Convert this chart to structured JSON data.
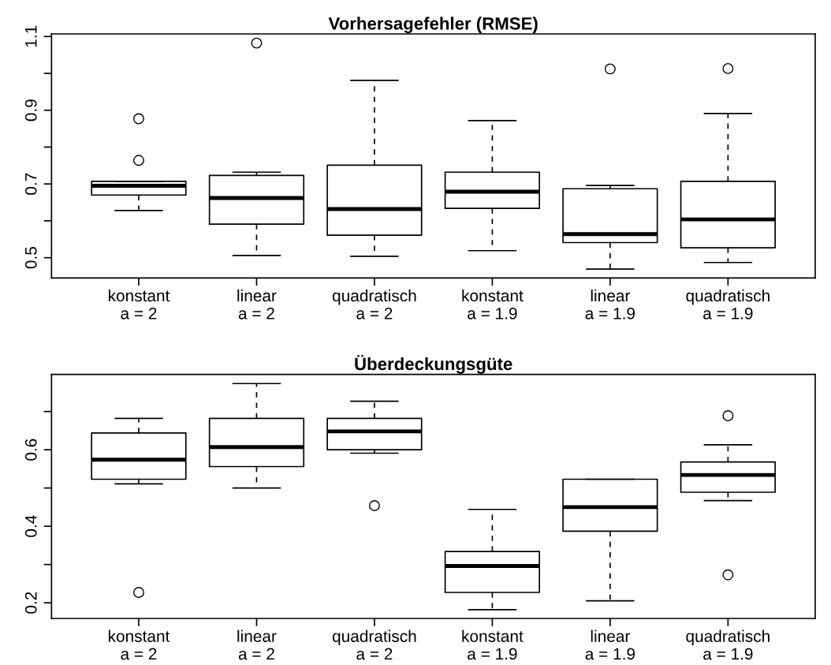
{
  "chart_data": [
    {
      "type": "box",
      "title": "Vorhersagefehler (RMSE)",
      "categories": [
        "konstant\na = 2",
        "linear\na = 2",
        "quadratisch\na = 2",
        "konstant\na = 1.9",
        "linear\na = 1.9",
        "quadratisch\na = 1.9"
      ],
      "boxes": [
        {
          "low": 0.628,
          "q1": 0.67,
          "median": 0.695,
          "q3": 0.707,
          "high": 0.707,
          "outliers": [
            0.877,
            0.764
          ]
        },
        {
          "low": 0.506,
          "q1": 0.591,
          "median": 0.662,
          "q3": 0.723,
          "high": 0.732,
          "outliers": [
            1.082
          ]
        },
        {
          "low": 0.504,
          "q1": 0.561,
          "median": 0.632,
          "q3": 0.751,
          "high": 0.981
        },
        {
          "low": 0.519,
          "q1": 0.634,
          "median": 0.679,
          "q3": 0.732,
          "high": 0.872
        },
        {
          "low": 0.469,
          "q1": 0.541,
          "median": 0.564,
          "q3": 0.687,
          "high": 0.696,
          "outliers": [
            1.012
          ]
        },
        {
          "low": 0.487,
          "q1": 0.527,
          "median": 0.604,
          "q3": 0.707,
          "high": 0.891,
          "outliers": [
            1.013
          ]
        }
      ],
      "ylim": [
        0.445,
        1.107
      ],
      "yticks": [
        0.5,
        {
          "value": 0.6,
          "label": null
        },
        0.7,
        {
          "value": 0.8,
          "label": null
        },
        0.9,
        {
          "value": 1.0,
          "label": null
        },
        1.1
      ],
      "grid": false
    },
    {
      "type": "box",
      "title": "Überdeckungsgüte",
      "categories": [
        "konstant\na = 2",
        "linear\na = 2",
        "quadratisch\na = 2",
        "konstant\na = 1.9",
        "linear\na = 1.9",
        "quadratisch\na = 1.9"
      ],
      "boxes": [
        {
          "low": 0.511,
          "q1": 0.523,
          "median": 0.574,
          "q3": 0.644,
          "high": 0.682,
          "outliers": [
            0.227
          ]
        },
        {
          "low": 0.5,
          "q1": 0.556,
          "median": 0.607,
          "q3": 0.682,
          "high": 0.773
        },
        {
          "low": 0.591,
          "q1": 0.6,
          "median": 0.648,
          "q3": 0.682,
          "high": 0.727,
          "outliers": [
            0.454
          ]
        },
        {
          "low": 0.182,
          "q1": 0.227,
          "median": 0.296,
          "q3": 0.334,
          "high": 0.444
        },
        {
          "low": 0.205,
          "q1": 0.387,
          "median": 0.45,
          "q3": 0.523,
          "high": 0.523
        },
        {
          "low": 0.467,
          "q1": 0.489,
          "median": 0.534,
          "q3": 0.568,
          "high": 0.613,
          "outliers": [
            0.689,
            0.273
          ]
        }
      ],
      "ylim": [
        0.159,
        0.797
      ],
      "yticks": [
        0.2,
        {
          "value": 0.3,
          "label": null
        },
        0.4,
        {
          "value": 0.5,
          "label": null
        },
        0.6,
        {
          "value": 0.7,
          "label": null
        }
      ],
      "grid": false
    }
  ]
}
